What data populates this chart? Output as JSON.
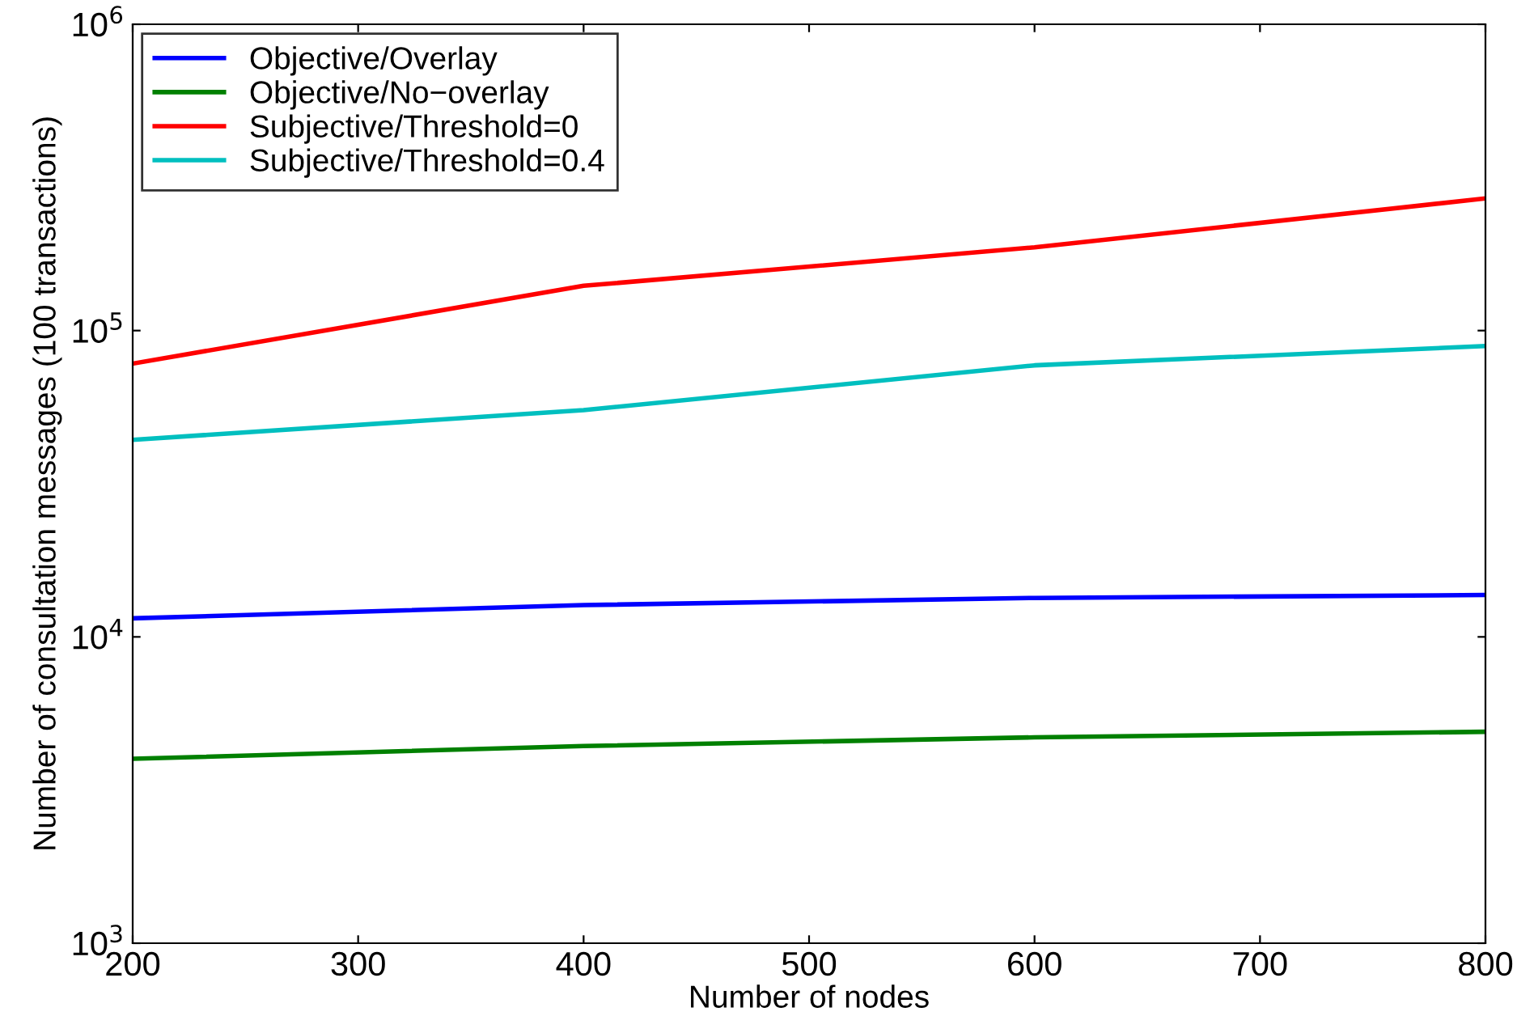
{
  "chart_data": {
    "type": "line",
    "xlabel": "Number of nodes",
    "ylabel": "Number of consultation messages (100 transactions)",
    "x": [
      200,
      400,
      600,
      800
    ],
    "series": [
      {
        "name": "Objective/Overlay",
        "color": "#0000ff",
        "values": [
          11500,
          12700,
          13400,
          13700
        ]
      },
      {
        "name": "Objective/No−overlay",
        "color": "#008000",
        "values": [
          4000,
          4400,
          4700,
          4900
        ]
      },
      {
        "name": "Subjective/Threshold=0",
        "color": "#ff0000",
        "values": [
          78000,
          140000,
          187000,
          270000
        ]
      },
      {
        "name": "Subjective/Threshold=0.4",
        "color": "#00bfbf",
        "values": [
          44000,
          55000,
          77000,
          89000
        ]
      }
    ],
    "log": "y",
    "xlim": [
      200,
      800
    ],
    "xticks": [
      200,
      300,
      400,
      500,
      600,
      700,
      800
    ],
    "ylim": [
      1000,
      1000000
    ],
    "yticks": [
      {
        "value": 1000,
        "label": "10$^{3}$"
      },
      {
        "value": 10000,
        "label": "10$^{4}$"
      },
      {
        "value": 100000,
        "label": "10$^{5}$"
      },
      {
        "value": 1000000,
        "label": "10$^{6}$"
      }
    ],
    "legend": "top left",
    "grid": false,
    "marker": "none",
    "line_style": "solid"
  }
}
